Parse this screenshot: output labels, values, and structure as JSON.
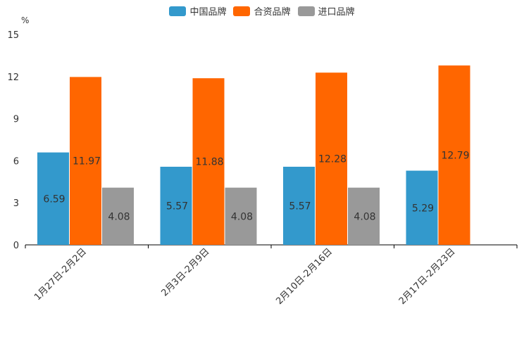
{
  "chart_data": {
    "type": "bar",
    "ylabel": "%",
    "ylim": [
      0,
      15
    ],
    "yticks": [
      0,
      3,
      6,
      9,
      12,
      15
    ],
    "categories": [
      "1月27日-2月2日",
      "2月3日-2月9日",
      "2月10日-2月16日",
      "2月17日-2月23日"
    ],
    "series": [
      {
        "name": "中国品牌",
        "color": "#3399cc",
        "values": [
          6.59,
          5.57,
          5.57,
          5.29
        ],
        "labels": [
          "6.59",
          "5.57",
          "5.57",
          "5.29"
        ]
      },
      {
        "name": "合资品牌",
        "color": "#ff6600",
        "values": [
          11.97,
          11.88,
          12.28,
          12.79
        ],
        "labels": [
          "11.97",
          "11.88",
          "12.28",
          "12.79"
        ]
      },
      {
        "name": "进口品牌",
        "color": "#999999",
        "values": [
          4.08,
          4.08,
          4.08,
          null
        ],
        "labels": [
          "4.08",
          "4.08",
          "4.08",
          ""
        ]
      }
    ]
  }
}
